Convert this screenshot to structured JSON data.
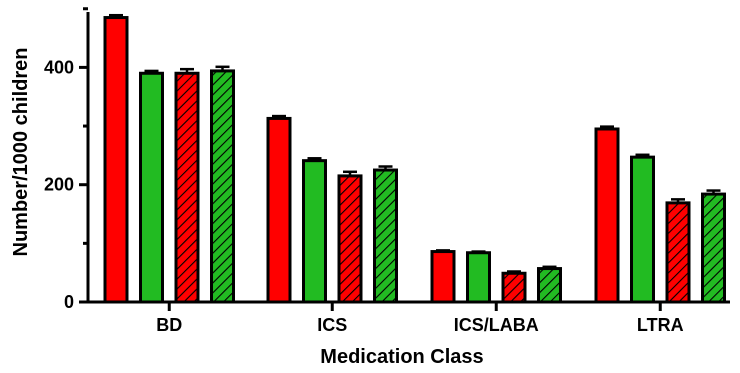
{
  "chart_data": {
    "type": "bar",
    "xlabel": "Medication Class",
    "ylabel": "Number/1000 children",
    "categories": [
      "BD",
      "ICS",
      "ICS/LABA",
      "LTRA"
    ],
    "ylim": [
      0,
      500
    ],
    "yticks": [
      0,
      200,
      400
    ],
    "grid": false,
    "legend": "none",
    "series": [
      {
        "color": "#ff0000",
        "hatched": false,
        "values": [
          485,
          313,
          86,
          295
        ],
        "errors": [
          4,
          4,
          2,
          4
        ]
      },
      {
        "color": "#22bb22",
        "hatched": false,
        "values": [
          390,
          241,
          84,
          247
        ],
        "errors": [
          4,
          4,
          2,
          4
        ]
      },
      {
        "color": "#ff0000",
        "hatched": true,
        "values": [
          390,
          215,
          49,
          169
        ],
        "errors": [
          7,
          7,
          3,
          6
        ]
      },
      {
        "color": "#22bb22",
        "hatched": true,
        "values": [
          394,
          225,
          57,
          184
        ],
        "errors": [
          7,
          6,
          3,
          6
        ]
      }
    ]
  }
}
